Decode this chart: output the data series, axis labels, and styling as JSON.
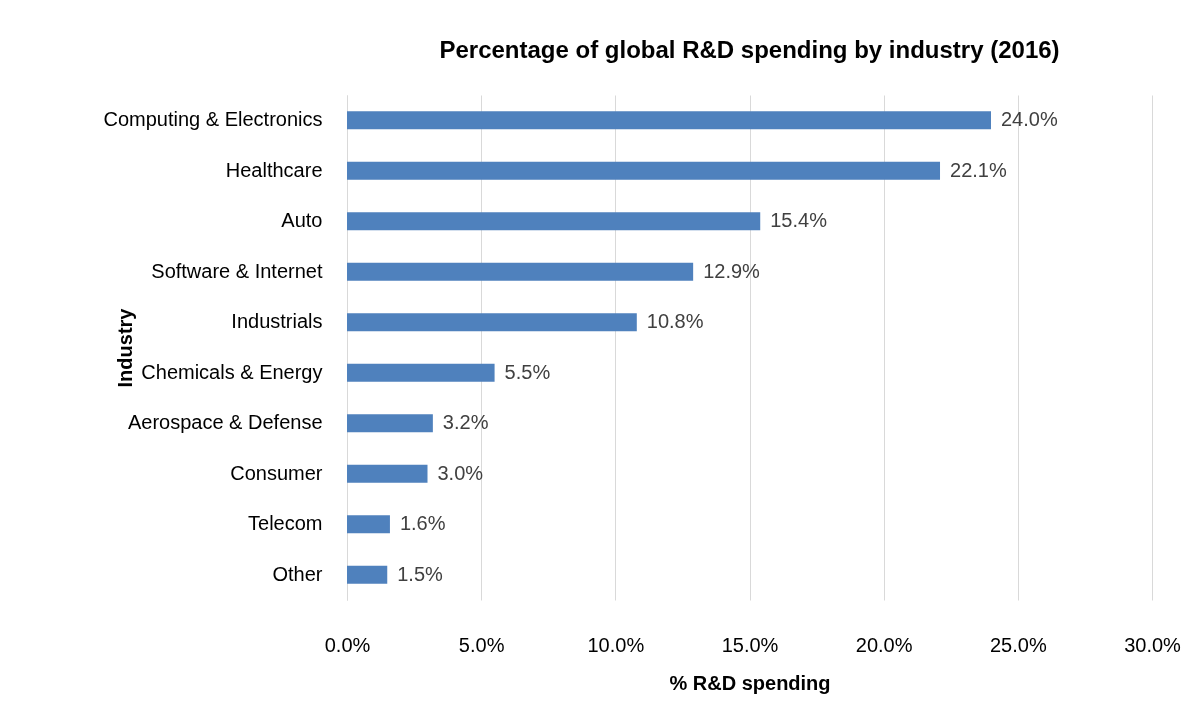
{
  "chart_data": {
    "type": "bar",
    "orientation": "horizontal",
    "title": "Percentage of global R&D spending by industry (2016)",
    "xlabel": "% R&D spending",
    "ylabel": "Industry",
    "categories": [
      "Computing & Electronics",
      "Healthcare",
      "Auto",
      "Software & Internet",
      "Industrials",
      "Chemicals & Energy",
      "Aerospace & Defense",
      "Consumer",
      "Telecom",
      "Other"
    ],
    "values": [
      24.0,
      22.1,
      15.4,
      12.9,
      10.8,
      5.5,
      3.2,
      3.0,
      1.6,
      1.5
    ],
    "value_labels": [
      "24.0%",
      "22.1%",
      "15.4%",
      "12.9%",
      "10.8%",
      "5.5%",
      "3.2%",
      "3.0%",
      "1.6%",
      "1.5%"
    ],
    "color": "#4f81bd",
    "xlim": [
      0,
      30
    ],
    "xticks": [
      {
        "value": 0,
        "label": "0.0%"
      },
      {
        "value": 5,
        "label": "5.0%"
      },
      {
        "value": 10,
        "label": "10.0%"
      },
      {
        "value": 15,
        "label": "15.0%"
      },
      {
        "value": 20,
        "label": "20.0%"
      },
      {
        "value": 25,
        "label": "25.0%"
      },
      {
        "value": 30,
        "label": "30.0%"
      }
    ],
    "grid": "x"
  }
}
